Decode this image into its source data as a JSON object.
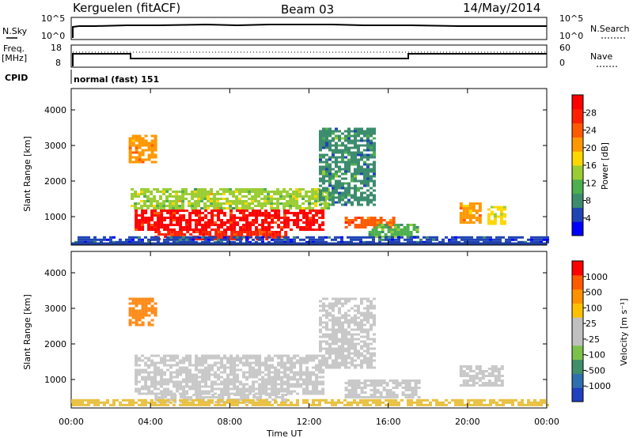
{
  "header": {
    "station": "Kerguelen (fitACF)",
    "beam": "Beam 03",
    "date": "14/May/2014"
  },
  "sky_panel": {
    "left_label": "N.Sky",
    "right_label": "N.Search",
    "left_ticks": [
      "10^5",
      "10^0"
    ],
    "right_ticks": [
      "10^5",
      "10^0"
    ]
  },
  "freq_panel": {
    "left_label_line1": "Freq.",
    "left_label_line2": "[MHz]",
    "right_label": "Nave",
    "left_ticks": [
      "18",
      "8"
    ],
    "right_ticks": [
      "60",
      "0"
    ]
  },
  "cpid": {
    "label": "CPID",
    "value": "normal (fast) 151"
  },
  "chart_data": [
    {
      "type": "heatmap",
      "name": "power",
      "ylabel": "Slant Range [km]",
      "yticks": [
        "1000",
        "2000",
        "3000",
        "4000"
      ],
      "ylim": [
        200,
        4600
      ],
      "colorbar": {
        "label": "Power [dB]",
        "ticks": [
          "4",
          "8",
          "12",
          "16",
          "20",
          "24",
          "28"
        ],
        "colors": [
          "#0000ff",
          "#1f44b4",
          "#3c8c6e",
          "#4caf50",
          "#9acd32",
          "#ffd700",
          "#ff9800",
          "#ff5a00",
          "#ff2000",
          "#ff0000"
        ]
      },
      "regions": [
        {
          "t": [
            3.2,
            12.7
          ],
          "r": [
            600,
            1200
          ],
          "level": 0.95
        },
        {
          "t": [
            4.2,
            10.8
          ],
          "r": [
            350,
            600
          ],
          "level": 0.9
        },
        {
          "t": [
            3.0,
            13.0
          ],
          "r": [
            1200,
            1800
          ],
          "level": 0.45
        },
        {
          "t": [
            2.9,
            4.3
          ],
          "r": [
            2500,
            3300
          ],
          "level": 0.7
        },
        {
          "t": [
            12.5,
            15.3
          ],
          "r": [
            1300,
            3500
          ],
          "level": 0.25
        },
        {
          "t": [
            13.8,
            16.2
          ],
          "r": [
            700,
            1000
          ],
          "level": 0.8
        },
        {
          "t": [
            15.0,
            17.5
          ],
          "r": [
            400,
            800
          ],
          "level": 0.35
        },
        {
          "t": [
            19.6,
            20.6
          ],
          "r": [
            800,
            1400
          ],
          "level": 0.65
        },
        {
          "t": [
            21.0,
            21.8
          ],
          "r": [
            800,
            1300
          ],
          "level": 0.55
        },
        {
          "t": [
            0.0,
            24.0
          ],
          "r": [
            250,
            450
          ],
          "level": 0.1
        }
      ]
    },
    {
      "type": "heatmap",
      "name": "velocity",
      "ylabel": "Slant Range [km]",
      "yticks": [
        "1000",
        "2000",
        "3000",
        "4000"
      ],
      "ylim": [
        200,
        4600
      ],
      "colorbar": {
        "label": "Velocity [m s⁻¹]",
        "ticks": [
          "1000",
          "500",
          "100",
          "25",
          "-25",
          "-100",
          "-500",
          "-1000"
        ],
        "colors": [
          "#2040c0",
          "#2e6fb0",
          "#3f8f6a",
          "#7cc24a",
          "#c0c0c0",
          "#c0c0c0",
          "#ffc000",
          "#ff9000",
          "#ff5a00",
          "#ff0000"
        ]
      },
      "regions": [
        {
          "t": [
            3.2,
            12.7
          ],
          "r": [
            600,
            1700
          ],
          "level": "grey"
        },
        {
          "t": [
            4.2,
            10.8
          ],
          "r": [
            350,
            600
          ],
          "level": "grey"
        },
        {
          "t": [
            12.5,
            15.3
          ],
          "r": [
            1300,
            3300
          ],
          "level": "grey"
        },
        {
          "t": [
            13.8,
            17.5
          ],
          "r": [
            500,
            1000
          ],
          "level": "grey"
        },
        {
          "t": [
            19.6,
            21.8
          ],
          "r": [
            800,
            1400
          ],
          "level": "grey"
        },
        {
          "t": [
            2.9,
            4.3
          ],
          "r": [
            2500,
            3300
          ],
          "level": "orange"
        },
        {
          "t": [
            0.0,
            24.0
          ],
          "r": [
            250,
            450
          ],
          "level": "yellow"
        }
      ]
    }
  ],
  "x_axis": {
    "ticks": [
      "00:00",
      "04:00",
      "08:00",
      "12:00",
      "16:00",
      "20:00",
      "00:00"
    ],
    "label": "Time UT",
    "range": [
      0,
      24
    ]
  }
}
